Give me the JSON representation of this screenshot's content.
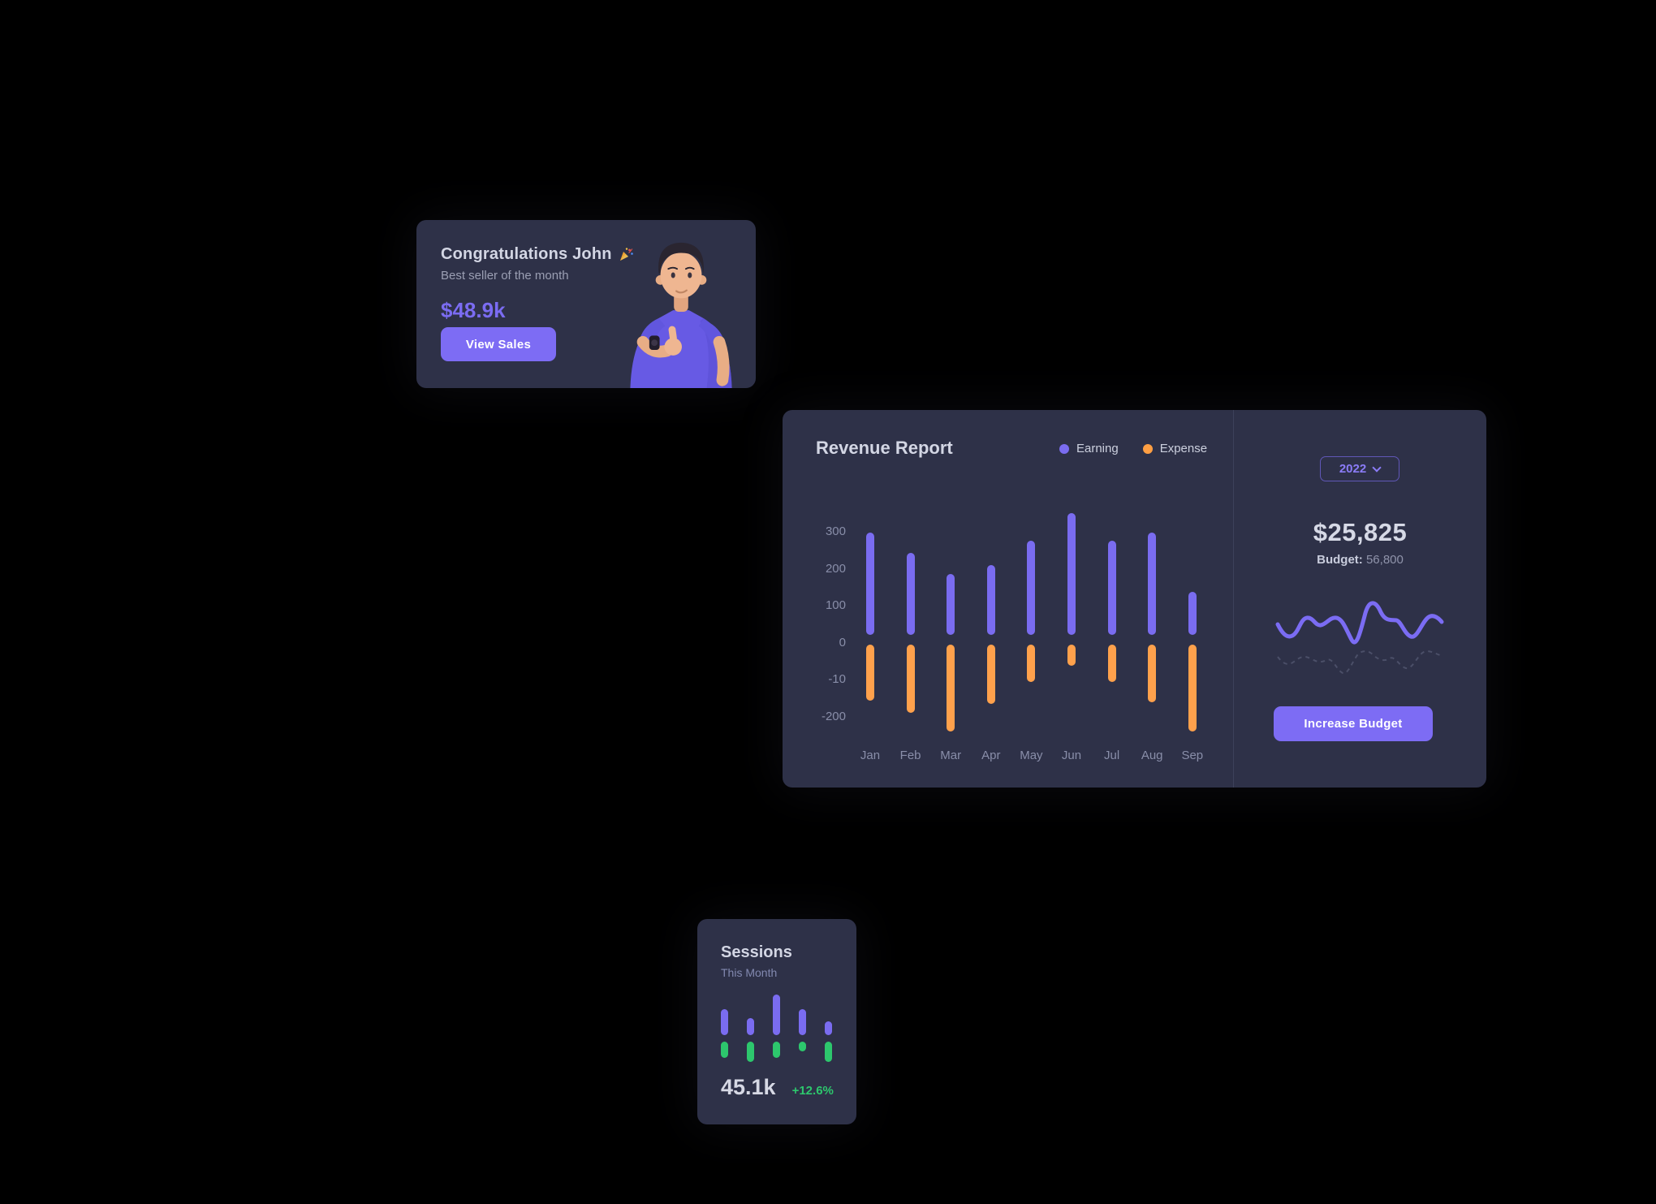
{
  "colors": {
    "background": "#000000",
    "card": "#2e3148",
    "accent_purple": "#7b6cf2",
    "accent_orange": "#ff9f43",
    "accent_green": "#2dc76d",
    "text_primary": "#d3d6e4",
    "text_muted": "#9b9fb3",
    "button_bg": "#7d6cf4",
    "button_text": "#ffffff"
  },
  "congrats_card": {
    "title": "Congratulations John",
    "title_icon": "party-popper-icon",
    "subtitle": "Best seller of the month",
    "amount": "$48.9k",
    "view_sales_label": "View Sales"
  },
  "revenue_card": {
    "title": "Revenue Report",
    "legend": [
      {
        "label": "Earning",
        "color": "#7a6cf0"
      },
      {
        "label": "Expense",
        "color": "#ff9f43"
      }
    ],
    "year_selector": {
      "value": "2022",
      "icon": "chevron-down-icon"
    },
    "total": "$25,825",
    "budget_label": "Budget:",
    "budget_value": "56,800",
    "increase_budget_label": "Increase Budget",
    "wave_solid_color": "#7b6cf3",
    "wave_dashed_color": "#4b4f68"
  },
  "sessions_card": {
    "title": "Sessions",
    "subtitle": "This Month",
    "value": "45.1k",
    "delta": "+12.6%"
  },
  "chart_data": [
    {
      "id": "revenue",
      "type": "bar",
      "title": "Revenue Report",
      "categories": [
        "Jan",
        "Feb",
        "Mar",
        "Apr",
        "May",
        "Jun",
        "Jul",
        "Aug",
        "Sep"
      ],
      "series": [
        {
          "name": "Earning",
          "color": "#7a6cf0",
          "base": 22,
          "values": [
            300,
            245,
            186,
            211,
            278,
            352,
            278,
            298,
            138
          ]
        },
        {
          "name": "Expense",
          "color": "#ffa14c",
          "base": -5,
          "values": [
            -155,
            -190,
            -240,
            -165,
            -105,
            -62,
            -105,
            -160,
            -240
          ]
        }
      ],
      "y_tick_labels": [
        "300",
        "200",
        "100",
        "0",
        "-10",
        "-200"
      ],
      "y_units_per_gridline": 100,
      "ylim": [
        -250,
        380
      ],
      "grid": false,
      "legend_position": "top-right"
    },
    {
      "id": "sessions",
      "type": "bar",
      "title": "Sessions This Month",
      "series": [
        {
          "name": "upper",
          "color": "#7a6cf0",
          "values": [
            32,
            21,
            50,
            32,
            17
          ]
        },
        {
          "name": "lower",
          "color": "#2dc76d",
          "values": [
            20,
            25,
            20,
            12,
            25
          ]
        }
      ],
      "grid": false
    }
  ]
}
